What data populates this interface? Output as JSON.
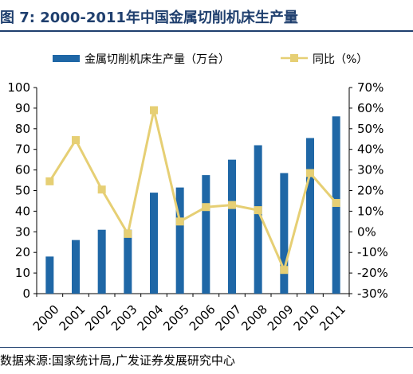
{
  "figure": {
    "title": "图 7:  2000-2011年中国金属切削机床生产量",
    "source": "数据来源:国家统计局,广发证券发展研究中心"
  },
  "colors": {
    "bar": "#1f67a6",
    "line": "#e6cf74",
    "axis": "#000000",
    "title": "#1f3f6e"
  },
  "chart_data": {
    "type": "bar",
    "categories": [
      "2000",
      "2001",
      "2002",
      "2003",
      "2004",
      "2005",
      "2006",
      "2007",
      "2008",
      "2009",
      "2010",
      "2011"
    ],
    "series": [
      {
        "name": "金属切削机床生产量（万台）",
        "type": "bar",
        "axis": "left",
        "values": [
          18,
          26,
          31,
          31,
          49,
          51.5,
          57.5,
          65,
          72,
          58.5,
          75.5,
          86
        ]
      },
      {
        "name": "同比（%）",
        "type": "line",
        "axis": "right",
        "values": [
          24.5,
          44.5,
          20.5,
          -1,
          59,
          5,
          12,
          13,
          10.5,
          -18.5,
          28.5,
          14
        ]
      }
    ],
    "ylim_left": [
      0,
      100
    ],
    "yticks_left": [
      "0",
      "10",
      "20",
      "30",
      "40",
      "50",
      "60",
      "70",
      "80",
      "90",
      "100"
    ],
    "ylim_right": [
      -30,
      70
    ],
    "yticks_right": [
      "-30%",
      "-20%",
      "-10%",
      "0%",
      "10%",
      "20%",
      "30%",
      "40%",
      "50%",
      "60%",
      "70%"
    ],
    "legend_position": "top",
    "grid": false
  }
}
